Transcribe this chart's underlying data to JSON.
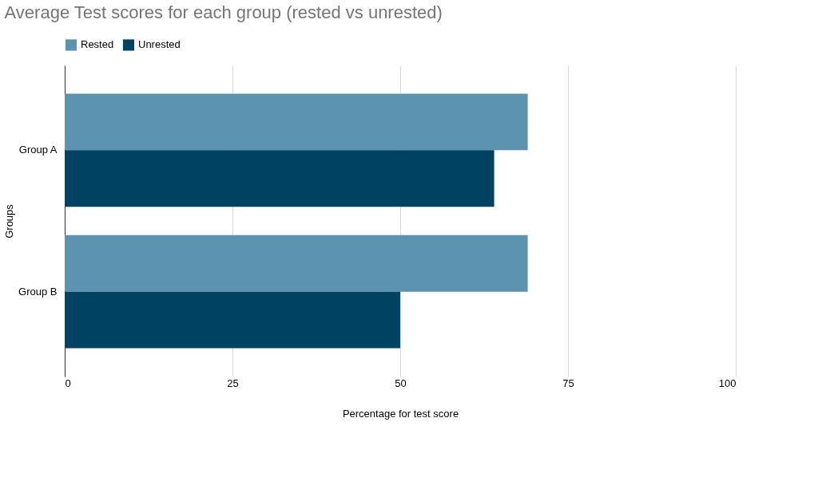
{
  "chart_data": {
    "type": "bar",
    "orientation": "horizontal",
    "title": "Average Test scores for each group (rested vs unrested)",
    "xlabel": "Percentage for test score",
    "ylabel": "Groups",
    "categories": [
      "Group A",
      "Group B"
    ],
    "series": [
      {
        "name": "Rested",
        "color": "#5b93b0",
        "values": [
          69,
          69
        ]
      },
      {
        "name": "Unrested",
        "color": "#004261",
        "values": [
          64,
          50
        ]
      }
    ],
    "xlim": [
      0,
      100
    ],
    "xticks": [
      0,
      25,
      50,
      75,
      100
    ],
    "grid": "x",
    "legend": "top"
  }
}
